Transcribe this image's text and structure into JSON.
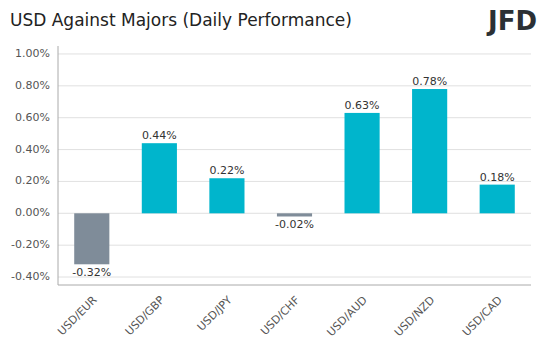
{
  "chart_data": {
    "type": "bar",
    "title": "USD Against Majors (Daily Performance)",
    "annotations": [
      "JFD"
    ],
    "categories": [
      "USD/EUR",
      "USD/GBP",
      "USD/JPY",
      "USD/CHF",
      "USD/AUD",
      "USD/NZD",
      "USD/CAD"
    ],
    "values": [
      -0.0032,
      0.0044,
      0.0022,
      -0.0002,
      0.0063,
      0.0078,
      0.0018
    ],
    "value_labels": [
      "-0.32%",
      "0.44%",
      "0.22%",
      "-0.02%",
      "0.63%",
      "0.78%",
      "0.18%"
    ],
    "colors": [
      "#7f8c99",
      "#00b5cc",
      "#00b5cc",
      "#7f8c99",
      "#00b5cc",
      "#00b5cc",
      "#00b5cc"
    ],
    "ylim": [
      -0.0045,
      0.0105
    ],
    "yticks": [
      {
        "value": -0.004,
        "label": "-0.40%"
      },
      {
        "value": -0.002,
        "label": "-0.20%"
      },
      {
        "value": 0.0,
        "label": "0.00%"
      },
      {
        "value": 0.002,
        "label": "0.20%"
      },
      {
        "value": 0.004,
        "label": "0.40%"
      },
      {
        "value": 0.006,
        "label": "0.60%"
      },
      {
        "value": 0.008,
        "label": "0.80%"
      },
      {
        "value": 0.01,
        "label": "1.00%"
      }
    ],
    "grid": true
  }
}
